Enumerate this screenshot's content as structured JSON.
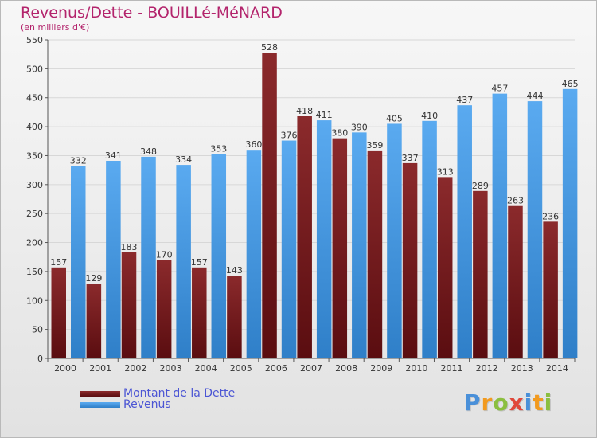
{
  "chart_data": {
    "type": "bar",
    "title": "Revenus/Dette - BOUILLé-MéNARD",
    "subtitle": "(en milliers d'€)",
    "categories": [
      "2000",
      "2001",
      "2002",
      "2003",
      "2004",
      "2005",
      "2006",
      "2007",
      "2008",
      "2009",
      "2010",
      "2011",
      "2012",
      "2013",
      "2014"
    ],
    "series": [
      {
        "name": "Montant de la Dette",
        "color": "#7b1e22",
        "values": [
          157,
          129,
          183,
          170,
          157,
          143,
          528,
          418,
          380,
          359,
          337,
          313,
          289,
          263,
          236
        ]
      },
      {
        "name": "Revenus",
        "color": "#4f9fe3",
        "values": [
          332,
          341,
          348,
          334,
          353,
          360,
          376,
          411,
          390,
          405,
          410,
          437,
          457,
          444,
          465
        ]
      }
    ],
    "ylim": [
      0,
      550
    ],
    "yticks": [
      0,
      50,
      100,
      150,
      200,
      250,
      300,
      350,
      400,
      450,
      500,
      550
    ],
    "grid": true,
    "legend_position": "bottom-left"
  },
  "brand": {
    "letters": [
      "P",
      "r",
      "o",
      "x",
      "i",
      "t",
      "i"
    ],
    "colors": [
      "#4a90d9",
      "#f29a1e",
      "#8bbf3f",
      "#e0473a",
      "#4a90d9",
      "#f29a1e",
      "#8bbf3f"
    ]
  }
}
